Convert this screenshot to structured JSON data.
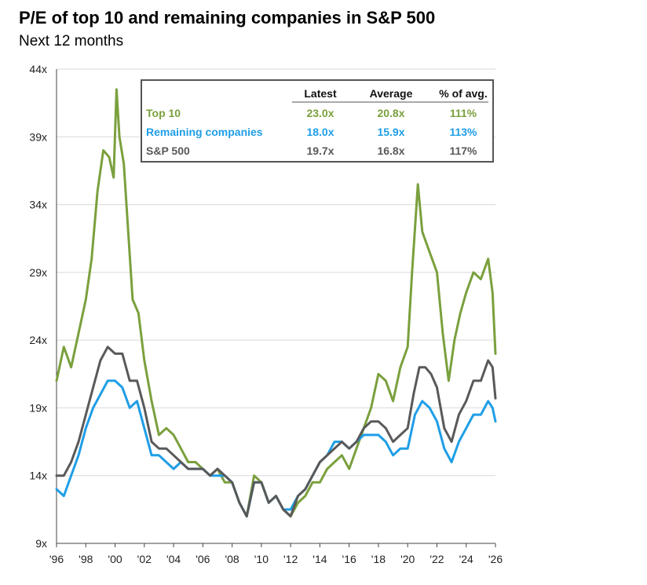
{
  "chart_data": {
    "type": "line",
    "title": "P/E of top 10 and remaining companies in S&P 500",
    "subtitle": "Next 12 months",
    "xlabel": "",
    "ylabel": "",
    "xlim": [
      1996,
      2026
    ],
    "ylim": [
      9,
      44
    ],
    "yticks": [
      {
        "value": 9,
        "label": "9x"
      },
      {
        "value": 14,
        "label": "14x"
      },
      {
        "value": 19,
        "label": "19x"
      },
      {
        "value": 24,
        "label": "24x"
      },
      {
        "value": 29,
        "label": "29x"
      },
      {
        "value": 34,
        "label": "34x"
      },
      {
        "value": 39,
        "label": "39x"
      },
      {
        "value": 44,
        "label": "44x"
      }
    ],
    "xticks": [
      {
        "value": 1996,
        "label": "'96"
      },
      {
        "value": 1998,
        "label": "'98"
      },
      {
        "value": 2000,
        "label": "'00"
      },
      {
        "value": 2002,
        "label": "'02"
      },
      {
        "value": 2004,
        "label": "'04"
      },
      {
        "value": 2006,
        "label": "'06"
      },
      {
        "value": 2008,
        "label": "'08"
      },
      {
        "value": 2010,
        "label": "'10"
      },
      {
        "value": 2012,
        "label": "'12"
      },
      {
        "value": 2014,
        "label": "'14"
      },
      {
        "value": 2016,
        "label": "'16"
      },
      {
        "value": 2018,
        "label": "'18"
      },
      {
        "value": 2020,
        "label": "'20"
      },
      {
        "value": 2022,
        "label": "'22"
      },
      {
        "value": 2024,
        "label": "'24"
      },
      {
        "value": 2026,
        "label": "'26"
      }
    ],
    "grid": true,
    "series": [
      {
        "name": "Top 10",
        "color": "#7aa03d",
        "points": [
          [
            1996.0,
            21.0
          ],
          [
            1996.5,
            23.5
          ],
          [
            1997.0,
            22.0
          ],
          [
            1997.5,
            24.5
          ],
          [
            1998.0,
            27.0
          ],
          [
            1998.4,
            30.0
          ],
          [
            1998.8,
            35.0
          ],
          [
            1999.2,
            38.0
          ],
          [
            1999.6,
            37.5
          ],
          [
            1999.9,
            36.0
          ],
          [
            2000.1,
            42.5
          ],
          [
            2000.3,
            39.0
          ],
          [
            2000.6,
            37.0
          ],
          [
            2000.9,
            32.0
          ],
          [
            2001.2,
            27.0
          ],
          [
            2001.6,
            26.0
          ],
          [
            2002.0,
            22.5
          ],
          [
            2002.5,
            19.5
          ],
          [
            2003.0,
            17.0
          ],
          [
            2003.5,
            17.5
          ],
          [
            2004.0,
            17.0
          ],
          [
            2004.5,
            16.0
          ],
          [
            2005.0,
            15.0
          ],
          [
            2005.5,
            15.0
          ],
          [
            2006.0,
            14.5
          ],
          [
            2006.5,
            14.0
          ],
          [
            2007.0,
            14.5
          ],
          [
            2007.5,
            13.5
          ],
          [
            2008.0,
            13.5
          ],
          [
            2008.5,
            12.0
          ],
          [
            2009.0,
            11.0
          ],
          [
            2009.5,
            14.0
          ],
          [
            2010.0,
            13.5
          ],
          [
            2010.5,
            12.0
          ],
          [
            2011.0,
            12.5
          ],
          [
            2011.5,
            11.5
          ],
          [
            2012.0,
            11.0
          ],
          [
            2012.5,
            12.0
          ],
          [
            2013.0,
            12.5
          ],
          [
            2013.5,
            13.5
          ],
          [
            2014.0,
            13.5
          ],
          [
            2014.5,
            14.5
          ],
          [
            2015.0,
            15.0
          ],
          [
            2015.5,
            15.5
          ],
          [
            2016.0,
            14.5
          ],
          [
            2016.5,
            16.0
          ],
          [
            2017.0,
            17.5
          ],
          [
            2017.5,
            19.0
          ],
          [
            2018.0,
            21.5
          ],
          [
            2018.5,
            21.0
          ],
          [
            2019.0,
            19.5
          ],
          [
            2019.5,
            22.0
          ],
          [
            2020.0,
            23.5
          ],
          [
            2020.3,
            29.0
          ],
          [
            2020.7,
            35.5
          ],
          [
            2021.0,
            32.0
          ],
          [
            2021.5,
            30.5
          ],
          [
            2022.0,
            29.0
          ],
          [
            2022.4,
            24.5
          ],
          [
            2022.8,
            21.0
          ],
          [
            2023.2,
            24.0
          ],
          [
            2023.6,
            26.0
          ],
          [
            2024.0,
            27.5
          ],
          [
            2024.5,
            29.0
          ],
          [
            2025.0,
            28.5
          ],
          [
            2025.5,
            30.0
          ],
          [
            2025.8,
            27.5
          ],
          [
            2026.0,
            23.0
          ]
        ]
      },
      {
        "name": "Remaining companies",
        "color": "#1f9ee6",
        "points": [
          [
            1996.0,
            13.0
          ],
          [
            1996.5,
            12.5
          ],
          [
            1997.0,
            14.0
          ],
          [
            1997.5,
            15.5
          ],
          [
            1998.0,
            17.5
          ],
          [
            1998.5,
            19.0
          ],
          [
            1999.0,
            20.0
          ],
          [
            1999.5,
            21.0
          ],
          [
            2000.0,
            21.0
          ],
          [
            2000.5,
            20.5
          ],
          [
            2001.0,
            19.0
          ],
          [
            2001.5,
            19.5
          ],
          [
            2002.0,
            17.5
          ],
          [
            2002.5,
            15.5
          ],
          [
            2003.0,
            15.5
          ],
          [
            2003.5,
            15.0
          ],
          [
            2004.0,
            14.5
          ],
          [
            2004.5,
            15.0
          ],
          [
            2005.0,
            14.5
          ],
          [
            2005.5,
            14.5
          ],
          [
            2006.0,
            14.5
          ],
          [
            2006.5,
            14.0
          ],
          [
            2007.0,
            14.0
          ],
          [
            2007.5,
            14.0
          ],
          [
            2008.0,
            13.5
          ],
          [
            2008.5,
            12.0
          ],
          [
            2009.0,
            11.0
          ],
          [
            2009.5,
            13.5
          ],
          [
            2010.0,
            13.5
          ],
          [
            2010.5,
            12.0
          ],
          [
            2011.0,
            12.5
          ],
          [
            2011.5,
            11.5
          ],
          [
            2012.0,
            11.5
          ],
          [
            2012.5,
            12.5
          ],
          [
            2013.0,
            13.0
          ],
          [
            2013.5,
            14.0
          ],
          [
            2014.0,
            15.0
          ],
          [
            2014.5,
            15.5
          ],
          [
            2015.0,
            16.5
          ],
          [
            2015.5,
            16.5
          ],
          [
            2016.0,
            16.0
          ],
          [
            2016.5,
            16.5
          ],
          [
            2017.0,
            17.0
          ],
          [
            2017.5,
            17.0
          ],
          [
            2018.0,
            17.0
          ],
          [
            2018.5,
            16.5
          ],
          [
            2019.0,
            15.5
          ],
          [
            2019.5,
            16.0
          ],
          [
            2020.0,
            16.0
          ],
          [
            2020.5,
            18.5
          ],
          [
            2021.0,
            19.5
          ],
          [
            2021.5,
            19.0
          ],
          [
            2022.0,
            18.0
          ],
          [
            2022.5,
            16.0
          ],
          [
            2023.0,
            15.0
          ],
          [
            2023.5,
            16.5
          ],
          [
            2024.0,
            17.5
          ],
          [
            2024.5,
            18.5
          ],
          [
            2025.0,
            18.5
          ],
          [
            2025.5,
            19.5
          ],
          [
            2025.8,
            19.0
          ],
          [
            2026.0,
            18.0
          ]
        ]
      },
      {
        "name": "S&P 500",
        "color": "#595959",
        "points": [
          [
            1996.0,
            14.0
          ],
          [
            1996.5,
            14.0
          ],
          [
            1997.0,
            15.0
          ],
          [
            1997.5,
            16.5
          ],
          [
            1998.0,
            18.5
          ],
          [
            1998.5,
            20.5
          ],
          [
            1999.0,
            22.5
          ],
          [
            1999.5,
            23.5
          ],
          [
            2000.0,
            23.0
          ],
          [
            2000.5,
            23.0
          ],
          [
            2001.0,
            21.0
          ],
          [
            2001.5,
            21.0
          ],
          [
            2002.0,
            19.0
          ],
          [
            2002.5,
            16.5
          ],
          [
            2003.0,
            16.0
          ],
          [
            2003.5,
            16.0
          ],
          [
            2004.0,
            15.5
          ],
          [
            2004.5,
            15.0
          ],
          [
            2005.0,
            14.5
          ],
          [
            2005.5,
            14.5
          ],
          [
            2006.0,
            14.5
          ],
          [
            2006.5,
            14.0
          ],
          [
            2007.0,
            14.5
          ],
          [
            2007.5,
            14.0
          ],
          [
            2008.0,
            13.5
          ],
          [
            2008.5,
            12.0
          ],
          [
            2009.0,
            11.0
          ],
          [
            2009.5,
            13.5
          ],
          [
            2010.0,
            13.5
          ],
          [
            2010.5,
            12.0
          ],
          [
            2011.0,
            12.5
          ],
          [
            2011.5,
            11.5
          ],
          [
            2012.0,
            11.0
          ],
          [
            2012.5,
            12.5
          ],
          [
            2013.0,
            13.0
          ],
          [
            2013.5,
            14.0
          ],
          [
            2014.0,
            15.0
          ],
          [
            2014.5,
            15.5
          ],
          [
            2015.0,
            16.0
          ],
          [
            2015.5,
            16.5
          ],
          [
            2016.0,
            16.0
          ],
          [
            2016.5,
            16.5
          ],
          [
            2017.0,
            17.5
          ],
          [
            2017.5,
            18.0
          ],
          [
            2018.0,
            18.0
          ],
          [
            2018.5,
            17.5
          ],
          [
            2019.0,
            16.5
          ],
          [
            2019.5,
            17.0
          ],
          [
            2020.0,
            17.5
          ],
          [
            2020.4,
            20.0
          ],
          [
            2020.8,
            22.0
          ],
          [
            2021.2,
            22.0
          ],
          [
            2021.6,
            21.5
          ],
          [
            2022.0,
            20.5
          ],
          [
            2022.5,
            17.5
          ],
          [
            2023.0,
            16.5
          ],
          [
            2023.5,
            18.5
          ],
          [
            2024.0,
            19.5
          ],
          [
            2024.5,
            21.0
          ],
          [
            2025.0,
            21.0
          ],
          [
            2025.5,
            22.5
          ],
          [
            2025.8,
            22.0
          ],
          [
            2026.0,
            19.7
          ]
        ]
      }
    ],
    "table": {
      "headers": [
        "",
        "Latest",
        "Average",
        "% of avg."
      ],
      "rows": [
        {
          "label": "Top 10",
          "latest": "23.0x",
          "average": "20.8x",
          "pct": "111%",
          "color": "#7aa03d"
        },
        {
          "label": "Remaining companies",
          "latest": "18.0x",
          "average": "15.9x",
          "pct": "113%",
          "color": "#1f9ee6"
        },
        {
          "label": "S&P 500",
          "latest": "19.7x",
          "average": "16.8x",
          "pct": "117%",
          "color": "#595959"
        }
      ]
    }
  }
}
